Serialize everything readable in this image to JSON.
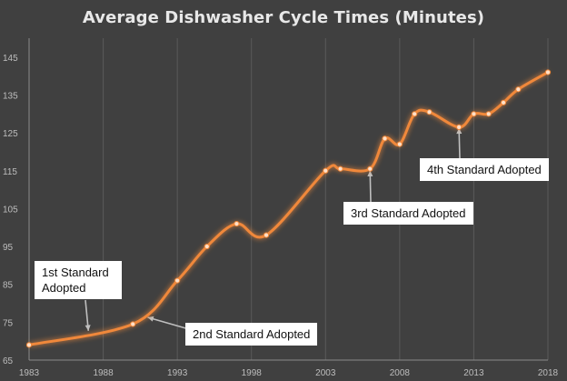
{
  "chart_data": {
    "type": "line",
    "title": "Average Dishwasher Cycle Times (Minutes)",
    "xlabel": "",
    "ylabel": "",
    "x": [
      1983,
      1990,
      1993,
      1995,
      1997,
      1999,
      2003,
      2004,
      2006,
      2007,
      2008,
      2009,
      2010,
      2012,
      2013,
      2014,
      2015,
      2016,
      2018
    ],
    "values": [
      69,
      74.5,
      86,
      95,
      101,
      98,
      115,
      115.5,
      115.5,
      123.5,
      122,
      130,
      130.5,
      126.5,
      130,
      130,
      133,
      136.5,
      141
    ],
    "x_ticks": [
      "1983",
      "1988",
      "1993",
      "1998",
      "2003",
      "2008",
      "2013",
      "2018"
    ],
    "y_ticks": [
      "65",
      "75",
      "85",
      "95",
      "105",
      "115",
      "125",
      "135",
      "145"
    ],
    "xlim": [
      1983,
      2018
    ],
    "ylim": [
      65,
      150
    ],
    "grid": "vertical",
    "legend": "none",
    "line_color": "#f0883a",
    "annotations": [
      {
        "text": "1st Standard Adopted",
        "x": 1987,
        "y": 72
      },
      {
        "text": "2nd Standard Adopted",
        "x": 1991,
        "y": 77
      },
      {
        "text": "3rd Standard Adopted",
        "x": 2006,
        "y": 116
      },
      {
        "text": "4th Standard Adopted",
        "x": 2012,
        "y": 127
      }
    ]
  }
}
